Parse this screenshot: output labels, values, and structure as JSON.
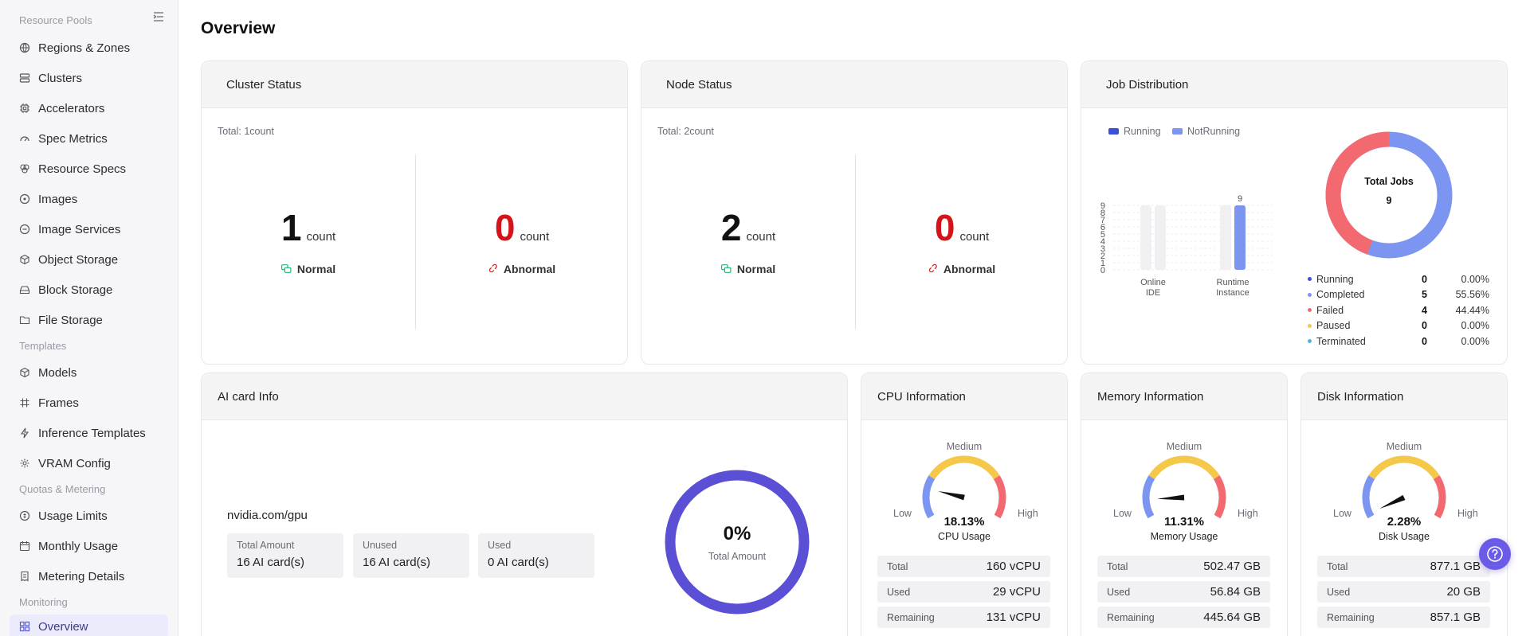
{
  "sidebar": {
    "sections": [
      "Resource Pools",
      "Templates",
      "Quotas & Metering",
      "Monitoring"
    ],
    "items": [
      {
        "label": "Regions & Zones",
        "icon": "globe-icon"
      },
      {
        "label": "Clusters",
        "icon": "server-icon"
      },
      {
        "label": "Accelerators",
        "icon": "chip-icon"
      },
      {
        "label": "Spec Metrics",
        "icon": "gauge-icon"
      },
      {
        "label": "Resource Specs",
        "icon": "layers-icon"
      },
      {
        "label": "Images",
        "icon": "disc-icon"
      },
      {
        "label": "Image Services",
        "icon": "disc-plus-icon"
      },
      {
        "label": "Object Storage",
        "icon": "cube-icon"
      },
      {
        "label": "Block Storage",
        "icon": "hard-drive-icon"
      },
      {
        "label": "File Storage",
        "icon": "folder-icon"
      },
      {
        "label": "Models",
        "icon": "box-icon"
      },
      {
        "label": "Frames",
        "icon": "hash-icon"
      },
      {
        "label": "Inference Templates",
        "icon": "bolt-icon"
      },
      {
        "label": "VRAM Config",
        "icon": "memory-icon"
      },
      {
        "label": "Usage Limits",
        "icon": "coin-icon"
      },
      {
        "label": "Monthly Usage",
        "icon": "calendar-icon"
      },
      {
        "label": "Metering Details",
        "icon": "receipt-icon"
      },
      {
        "label": "Overview",
        "icon": "grid-icon"
      }
    ]
  },
  "page": {
    "title": "Overview"
  },
  "cluster_status": {
    "title": "Cluster Status",
    "total": "Total: 1count",
    "normal_value": "1",
    "abnormal_value": "0",
    "unit": "count",
    "normal_label": "Normal",
    "abnormal_label": "Abnormal"
  },
  "node_status": {
    "title": "Node Status",
    "total": "Total: 2count",
    "normal_value": "2",
    "abnormal_value": "0",
    "unit": "count",
    "normal_label": "Normal",
    "abnormal_label": "Abnormal"
  },
  "job_distribution": {
    "title": "Job Distribution",
    "donut_title": "Total Jobs",
    "donut_total": "9",
    "table": [
      {
        "name": "Running",
        "count": "0",
        "pct": "0.00%",
        "color": "#3b4fd8"
      },
      {
        "name": "Completed",
        "count": "5",
        "pct": "55.56%",
        "color": "#7b95f0"
      },
      {
        "name": "Failed",
        "count": "4",
        "pct": "44.44%",
        "color": "#f26a70"
      },
      {
        "name": "Paused",
        "count": "0",
        "pct": "0.00%",
        "color": "#f5c84a"
      },
      {
        "name": "Terminated",
        "count": "0",
        "pct": "0.00%",
        "color": "#5aaee0"
      }
    ]
  },
  "chart_data": {
    "type": "bar",
    "categories": [
      "Online IDE",
      "Runtime Instance"
    ],
    "category_lines": [
      [
        "Online",
        "IDE"
      ],
      [
        "Runtime",
        "Instance"
      ]
    ],
    "series": [
      {
        "name": "Running",
        "values": [
          0,
          0
        ],
        "color": "#3b4fd8"
      },
      {
        "name": "NotRunning",
        "values": [
          0,
          9
        ],
        "color": "#7b95f0"
      }
    ],
    "data_labels": [
      "9"
    ],
    "ylim": [
      0,
      9
    ],
    "yticks": [
      "0",
      "1",
      "2",
      "3",
      "4",
      "5",
      "6",
      "7",
      "8",
      "9"
    ],
    "legend": "top-left",
    "grid": true
  },
  "ai_card": {
    "title": "AI card Info",
    "name": "nvidia.com/gpu",
    "total_label": "Total Amount",
    "total_value": "16 AI card(s)",
    "unused_label": "Unused",
    "unused_value": "16 AI card(s)",
    "used_label": "Used",
    "used_value": "0 AI card(s)",
    "ring_pct": "0%",
    "ring_label": "Total Amount",
    "ring_color": "#5b4fd6"
  },
  "gauge_labels": {
    "low": "Low",
    "medium": "Medium",
    "high": "High",
    "total": "Total",
    "used": "Used",
    "remaining": "Remaining"
  },
  "cpu": {
    "title": "CPU Information",
    "value_text": "18.13%",
    "value": 18.13,
    "caption": "CPU Usage",
    "total": "160 vCPU",
    "used": "29 vCPU",
    "remaining": "131 vCPU"
  },
  "memory": {
    "title": "Memory Information",
    "value_text": "11.31%",
    "value": 11.31,
    "caption": "Memory Usage",
    "total": "502.47 GB",
    "used": "56.84 GB",
    "remaining": "445.64 GB"
  },
  "disk": {
    "title": "Disk Information",
    "value_text": "2.28%",
    "value": 2.28,
    "caption": "Disk Usage",
    "total": "877.1 GB",
    "used": "20 GB",
    "remaining": "857.1 GB"
  },
  "colors": {
    "accent": "#5b5bd6",
    "gauge_low": "#7b95f0",
    "gauge_mid": "#f5c84a",
    "gauge_high": "#f26a70",
    "normal_green": "#22b573",
    "abnormal_red": "#d4141a"
  }
}
